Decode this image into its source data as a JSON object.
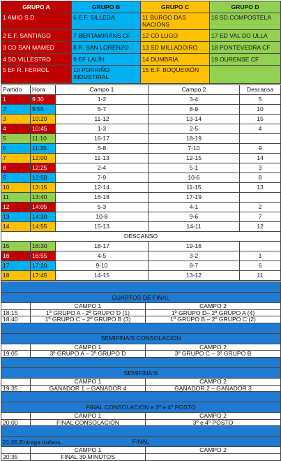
{
  "groups": {
    "headers": [
      "GRUPO A",
      "GRUPO B",
      "GRUPO C",
      "GRUPO D"
    ],
    "rows": [
      [
        "1 AMIO S.D",
        "6 E.F. SILLEDA",
        "11 BURGO DAS NACIÓNS",
        "16 SD.COMPOSTELA"
      ],
      [
        "2 E.F. SANTIAGO",
        "7 BERTAMIRÁNS CF",
        "12 CD LUGO",
        "17 ED VAL DO ULLA"
      ],
      [
        "3 CD SAN MAMED",
        "8 R. SAN LORENZO",
        "13 SD MILLADOIRO",
        "18 PONTEVEDRA CF"
      ],
      [
        "4 SD VILLESTRO",
        "9 EF LALÍN",
        "14 DUMBRÍA",
        "19 OURENSE CF"
      ],
      [
        "5 EF R. FERROL",
        "10 PORRIÑO INDUSTRIAL",
        "15 E.F. BOQUEIXÓN",
        ""
      ]
    ]
  },
  "schedule": {
    "headers": [
      "Partido",
      "Hora",
      "Campo 1",
      "Campo 2",
      "Descansa"
    ],
    "rows": [
      [
        "1",
        "9:30",
        "1-2",
        "3-4",
        "5"
      ],
      [
        "2",
        "9:55",
        "6-7",
        "8-9",
        "10"
      ],
      [
        "3",
        "10:20",
        "11-12",
        "13-14",
        "15"
      ],
      [
        "4",
        "10:45",
        "1-3",
        "2-5",
        "4"
      ],
      [
        "5",
        "11:10",
        "16-17",
        "18-19",
        ""
      ],
      [
        "6",
        "11:35",
        "6-8",
        "7-10",
        "9"
      ],
      [
        "7",
        "12:00",
        "11-13",
        "12-15",
        "14"
      ],
      [
        "8",
        "12:25",
        "2-4",
        "5-1",
        "3"
      ],
      [
        "9",
        "12:50",
        "7-9",
        "10-6",
        "8"
      ],
      [
        "10",
        "13:15",
        "12-14",
        "11-15",
        "13"
      ],
      [
        "11",
        "13:40",
        "16-18",
        "17-19",
        ""
      ],
      [
        "12",
        "14:05",
        "5-3",
        "4-1",
        "2"
      ],
      [
        "13",
        "14:30",
        "10-8",
        "9-6",
        "7"
      ],
      [
        "14",
        "14:55",
        "15-13",
        "14-11",
        "12"
      ]
    ],
    "break_label": "DESCANSO",
    "rows2": [
      [
        "15",
        "16:30",
        "18-17",
        "19-16",
        ""
      ],
      [
        "16",
        "16:55",
        "4-5",
        "3-2",
        "1"
      ],
      [
        "17",
        "17:20",
        "9-10",
        "8-7",
        "6"
      ],
      [
        "18",
        "17:45",
        "14-15",
        "13-12",
        "11"
      ]
    ]
  },
  "finals": {
    "quarters": {
      "title": "CUARTOS DE FINAL",
      "campo1": "CAMPO 1",
      "campo2": "CAMPO 2",
      "rows": [
        [
          "18:15",
          "1º GRUPO A - 2º GRUPO D (1)",
          "1º GRUPO D– 2º GRUPO A (4)"
        ],
        [
          "18:40",
          "1º GRUPO C – 2º GRUPO B (3)",
          "1º GRUPO B – 2º GRUPO C (2)"
        ]
      ]
    },
    "consolation_semis": {
      "title": "SEMIFINAIS CONSOLACIÓN",
      "campo1": "CAMPO 1",
      "campo2": "CAMPO 2",
      "rows": [
        [
          "19:05",
          "3º GRUPO A – 3º GRUPO D",
          "3º GRUPO C – 3º GRUPO B"
        ]
      ]
    },
    "semis": {
      "title": "SEMIFINAIS",
      "campo1": "CAMPO 1",
      "campo2": "CAMPO 2",
      "rows": [
        [
          "19:35",
          "GAÑADOR 1 – GAÑADOR 4",
          "GAÑADOR 2 – GAÑADOR 3"
        ]
      ]
    },
    "consolation_final": {
      "title": "FINAL CONSOLACIÓN e 3º e 4º POSTO",
      "campo1": "CAMPO 1",
      "campo2": "CAMPO 2",
      "rows": [
        [
          "20:00",
          "FINAL CONSOLACIÓN",
          "3º e 4º POSTO"
        ]
      ]
    },
    "final": {
      "title": "FINAL",
      "campo1": "CAMPO 1",
      "campo2": "CAMPO 2",
      "rows": [
        [
          "20:35",
          "FINAL 30 MINUTOS",
          ""
        ]
      ]
    }
  },
  "footer": "21:05 Entrega trofeos.",
  "colors": {
    "red": "#c00000",
    "blue": "#00b0f0",
    "yellow": "#ffc000",
    "green": "#92d050",
    "band": "#1f7ad1"
  }
}
